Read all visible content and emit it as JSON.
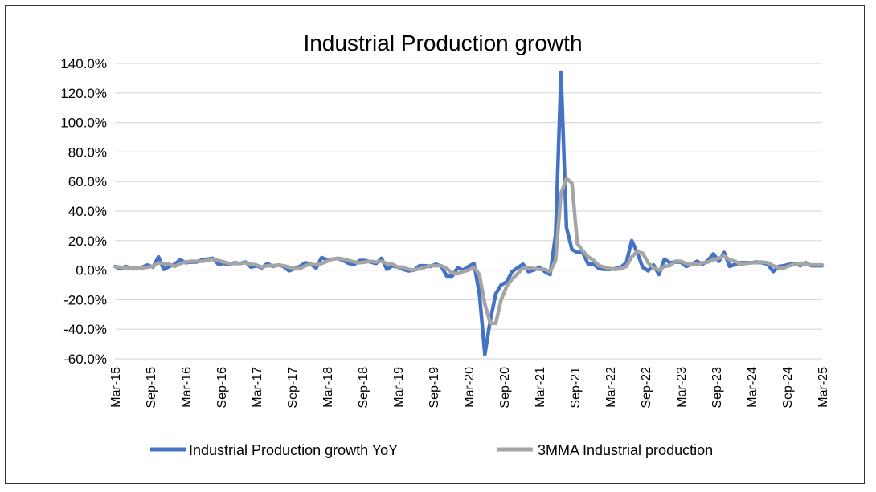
{
  "chart_data": {
    "type": "line",
    "title": "Industrial Production growth",
    "xlabel": "",
    "ylabel": "",
    "ylim": [
      -60,
      140
    ],
    "y_ticks": [
      140,
      120,
      100,
      80,
      60,
      40,
      20,
      0,
      -20,
      -40,
      -60
    ],
    "y_tick_labels": [
      "140.0%",
      "120.0%",
      "100.0%",
      "80.0%",
      "60.0%",
      "40.0%",
      "20.0%",
      "0.0%",
      "-20.0%",
      "-40.0%",
      "-60.0%"
    ],
    "x_tick_labels": [
      "Mar-15",
      "Sep-15",
      "Mar-16",
      "Sep-16",
      "Mar-17",
      "Sep-17",
      "Mar-18",
      "Sep-18",
      "Mar-19",
      "Sep-19",
      "Mar-20",
      "Sep-20",
      "Mar-21",
      "Sep-21",
      "Mar-22",
      "Sep-22",
      "Mar-23",
      "Sep-23",
      "Mar-24",
      "Sep-24",
      "Mar-25"
    ],
    "grid": true,
    "legend_position": "bottom",
    "series": [
      {
        "name": "Industrial Production growth YoY",
        "color": "#4472C4",
        "values": [
          2.5,
          1.0,
          2.5,
          1.5,
          1.0,
          2.0,
          3.5,
          2.0,
          9.0,
          0.5,
          2.5,
          4.0,
          7.0,
          5.0,
          5.5,
          5.5,
          7.0,
          7.5,
          8.0,
          4.0,
          4.5,
          4.0,
          5.0,
          4.5,
          5.5,
          2.0,
          3.0,
          1.5,
          4.5,
          2.5,
          3.5,
          2.5,
          -0.5,
          1.0,
          2.5,
          5.0,
          4.0,
          1.5,
          8.5,
          7.0,
          7.5,
          8.0,
          6.5,
          4.5,
          4.0,
          6.5,
          6.5,
          5.5,
          4.5,
          8.0,
          0.5,
          3.0,
          2.0,
          0.5,
          -0.5,
          0.0,
          3.0,
          3.0,
          2.5,
          4.0,
          2.5,
          -4.0,
          -4.0,
          1.5,
          0.0,
          2.5,
          4.5,
          -16.0,
          -57.0,
          -34.0,
          -16.0,
          -10.0,
          -8.0,
          -1.0,
          1.5,
          4.0,
          -1.0,
          0.0,
          2.0,
          -1.0,
          -3.0,
          24.0,
          134.0,
          29.0,
          14.0,
          12.0,
          12.0,
          4.0,
          4.0,
          1.0,
          0.5,
          0.5,
          1.0,
          2.0,
          5.0,
          20.0,
          12.0,
          2.0,
          -0.5,
          3.5,
          -3.0,
          7.5,
          5.0,
          5.5,
          5.5,
          2.5,
          4.0,
          6.0,
          4.0,
          6.5,
          11.0,
          6.0,
          12.0,
          2.5,
          4.0,
          5.0,
          5.0,
          5.0,
          5.5,
          5.0,
          4.0,
          -1.0,
          2.5,
          3.0,
          4.0,
          4.5,
          3.0,
          5.0,
          3.0,
          3.0,
          3.0
        ]
      },
      {
        "name": "3MMA Industrial production",
        "color": "#A5A5A5",
        "values": [
          2.5,
          2.0,
          1.5,
          1.5,
          1.5,
          1.5,
          2.0,
          2.5,
          5.0,
          4.5,
          4.0,
          2.5,
          4.5,
          5.5,
          6.0,
          6.0,
          6.0,
          6.5,
          7.5,
          6.5,
          5.5,
          4.5,
          4.5,
          4.5,
          5.0,
          4.0,
          3.5,
          2.0,
          3.0,
          3.0,
          3.5,
          3.0,
          2.0,
          1.0,
          1.0,
          3.0,
          4.0,
          3.5,
          4.5,
          6.0,
          7.5,
          8.0,
          7.5,
          6.5,
          5.5,
          5.0,
          5.5,
          6.0,
          5.5,
          6.0,
          4.5,
          4.0,
          2.0,
          2.0,
          0.5,
          0.0,
          1.0,
          2.0,
          3.0,
          3.0,
          3.0,
          1.0,
          -2.0,
          -2.5,
          -1.0,
          0.0,
          2.0,
          -3.0,
          -23.0,
          -36.0,
          -36.0,
          -20.0,
          -11.0,
          -6.0,
          -2.5,
          1.5,
          1.5,
          1.0,
          0.5,
          0.5,
          -1.0,
          6.5,
          52.0,
          62.0,
          59.0,
          18.0,
          13.0,
          9.0,
          6.5,
          3.0,
          2.0,
          1.0,
          0.5,
          1.0,
          2.5,
          9.0,
          12.5,
          11.5,
          5.0,
          1.5,
          0.0,
          2.5,
          3.0,
          6.0,
          6.0,
          4.5,
          4.0,
          4.0,
          5.0,
          5.5,
          7.0,
          8.0,
          9.5,
          7.0,
          6.0,
          4.0,
          4.5,
          5.0,
          5.0,
          5.5,
          5.0,
          3.0,
          1.5,
          1.5,
          3.0,
          4.0,
          4.0,
          4.0,
          3.5,
          3.5,
          3.5
        ]
      }
    ]
  }
}
